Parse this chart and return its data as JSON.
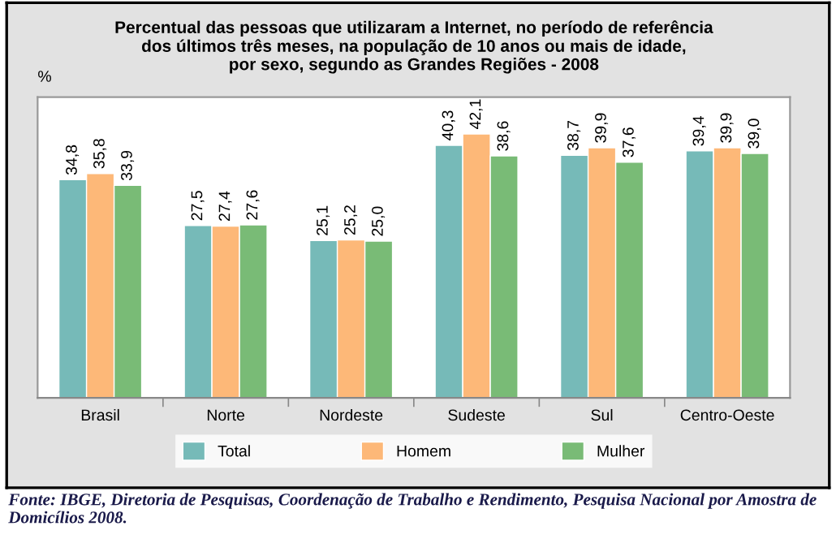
{
  "chart_data": {
    "type": "bar",
    "title": "Percentual das pessoas que utilizaram a Internet, no período de referência\ndos últimos três meses, na população de 10 anos ou mais de idade,\npor sexo, segundo as Grandes Regiões - 2008",
    "ylabel": "%",
    "categories": [
      "Brasil",
      "Norte",
      "Nordeste",
      "Sudeste",
      "Sul",
      "Centro-Oeste"
    ],
    "series": [
      {
        "name": "Total",
        "color": "#76bab8",
        "values": [
          34.8,
          27.5,
          25.1,
          40.3,
          38.7,
          39.4
        ],
        "value_labels": [
          "34,8",
          "27,5",
          "25,1",
          "40,3",
          "38,7",
          "39,4"
        ]
      },
      {
        "name": "Homem",
        "color": "#fdb878",
        "values": [
          35.8,
          27.4,
          25.2,
          42.1,
          39.9,
          39.9
        ],
        "value_labels": [
          "35,8",
          "27,4",
          "25,2",
          "42,1",
          "39,9",
          "39,9"
        ]
      },
      {
        "name": "Mulher",
        "color": "#79bb76",
        "values": [
          33.9,
          27.6,
          25.0,
          38.6,
          37.6,
          39.0
        ],
        "value_labels": [
          "33,9",
          "27,6",
          "25,0",
          "38,6",
          "37,6",
          "39,0"
        ]
      }
    ],
    "ylim": [
      0,
      48
    ],
    "legend": "bottom",
    "grid": false,
    "annotations": [
      "Fonte: IBGE, Diretoria de Pesquisas, Coordenação de Trabalho e Rendimento, Pesquisa Nacional por Amostra de Domicílios 2008."
    ]
  }
}
